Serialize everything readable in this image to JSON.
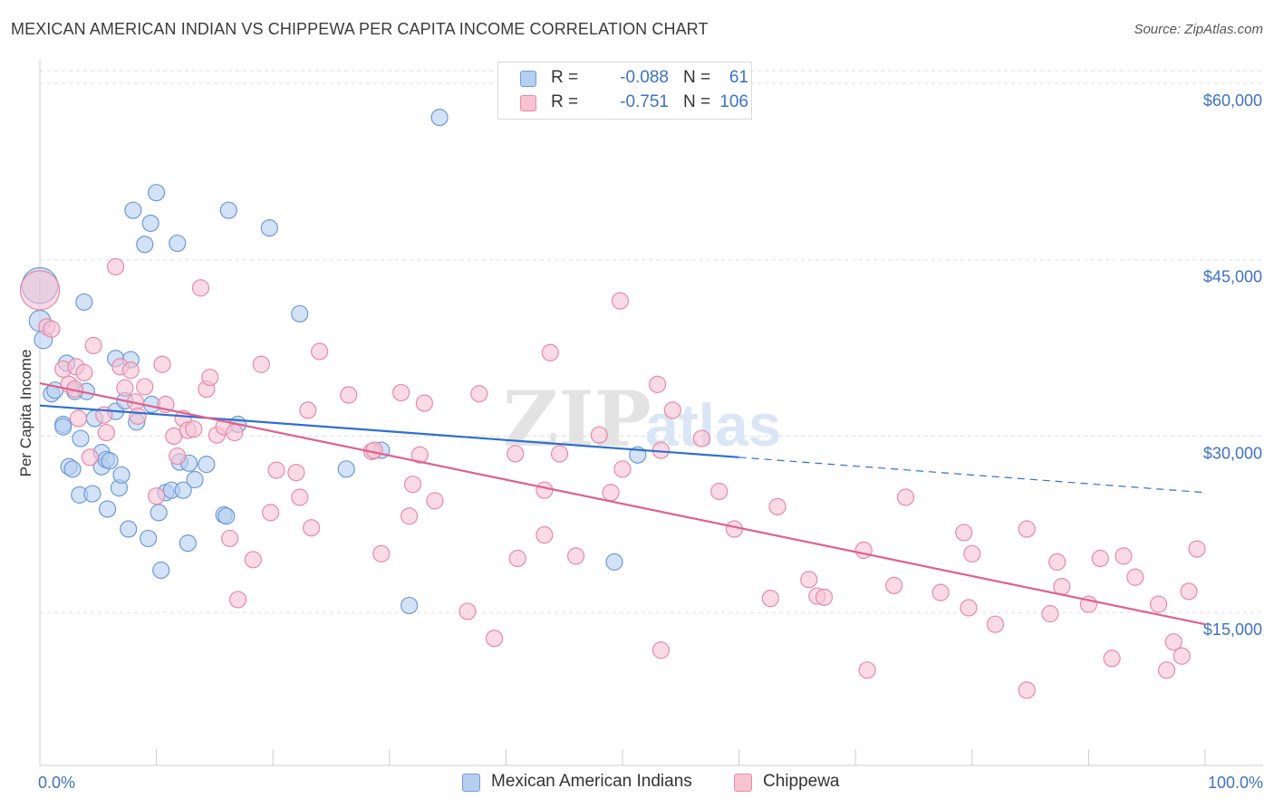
{
  "title": "MEXICAN AMERICAN INDIAN VS CHIPPEWA PER CAPITA INCOME CORRELATION CHART",
  "source": "Source: ZipAtlas.com",
  "watermark": {
    "zip": "ZIP",
    "atlas": "atlas"
  },
  "legend": {
    "r_label": "R =",
    "n_label": "N =",
    "rows": [
      {
        "r": "-0.088",
        "n": "61"
      },
      {
        "r": "-0.751",
        "n": "106"
      }
    ]
  },
  "colors": {
    "blue_fill": "#b6cff0",
    "blue_stroke": "#6d9ad8",
    "blue_line": "#2f6fce",
    "pink_fill": "#f7c3d3",
    "pink_stroke": "#e58aa8",
    "pink_line": "#e0608d",
    "tick_text": "#3d72c4",
    "grid": "#dddddd"
  },
  "chart_data": {
    "type": "scatter",
    "title": "MEXICAN AMERICAN INDIAN VS CHIPPEWA PER CAPITA INCOME CORRELATION CHART",
    "xlabel": "",
    "ylabel": "Per Capita Income",
    "xlim": [
      0,
      100
    ],
    "ylim": [
      2000,
      62000
    ],
    "x_tick_labels": [
      "0.0%",
      "100.0%"
    ],
    "y_ticks": [
      15000,
      30000,
      45000,
      60000
    ],
    "y_tick_labels": [
      "$15,000",
      "$30,000",
      "$45,000",
      "$60,000"
    ],
    "grid": true,
    "legend_position": "top-center",
    "series": [
      {
        "name": "Mexican American Indians",
        "r": -0.088,
        "n": 61,
        "trend": {
          "x0": 0,
          "y0": 32600,
          "x1": 60,
          "y1": 28200,
          "dashed_to_x": 100,
          "dashed_to_y": 25200
        },
        "points": [
          [
            0,
            42800,
            2.2
          ],
          [
            0,
            39800,
            1.3
          ],
          [
            0.3,
            38200,
            1.1
          ],
          [
            1,
            33600,
            1
          ],
          [
            1.3,
            33900,
            1
          ],
          [
            2,
            31000,
            1
          ],
          [
            2,
            30800,
            1
          ],
          [
            2.3,
            36200,
            1
          ],
          [
            2.5,
            27400,
            1
          ],
          [
            2.8,
            27200,
            1
          ],
          [
            3,
            33800,
            1
          ],
          [
            3.4,
            25000,
            1
          ],
          [
            3.5,
            29800,
            1
          ],
          [
            3.8,
            41400,
            1
          ],
          [
            4,
            33800,
            1
          ],
          [
            4.5,
            25100,
            1
          ],
          [
            4.7,
            31500,
            1
          ],
          [
            5.3,
            28600,
            1
          ],
          [
            5.3,
            27400,
            1
          ],
          [
            5.7,
            28000,
            1
          ],
          [
            5.8,
            23800,
            1
          ],
          [
            6,
            27900,
            1
          ],
          [
            6.5,
            36600,
            1
          ],
          [
            6.5,
            32100,
            1
          ],
          [
            6.8,
            25600,
            1
          ],
          [
            7,
            26700,
            1
          ],
          [
            7.3,
            33000,
            1
          ],
          [
            7.6,
            22100,
            1
          ],
          [
            7.8,
            36500,
            1
          ],
          [
            8,
            49200,
            1
          ],
          [
            8.3,
            31200,
            1
          ],
          [
            9,
            46300,
            1
          ],
          [
            9.3,
            21300,
            1
          ],
          [
            9.5,
            48100,
            1
          ],
          [
            9.6,
            32700,
            1
          ],
          [
            10,
            50700,
            1
          ],
          [
            10.2,
            23500,
            1
          ],
          [
            10.4,
            18600,
            1
          ],
          [
            10.8,
            25200,
            1
          ],
          [
            11.3,
            25400,
            1
          ],
          [
            11.8,
            46400,
            1
          ],
          [
            12,
            27800,
            1
          ],
          [
            12.3,
            25400,
            1
          ],
          [
            12.7,
            20900,
            1
          ],
          [
            12.8,
            27700,
            1
          ],
          [
            13.3,
            26300,
            1
          ],
          [
            14.3,
            27600,
            1
          ],
          [
            15.8,
            23300,
            1
          ],
          [
            16,
            23200,
            1
          ],
          [
            16.2,
            49200,
            1
          ],
          [
            17,
            31000,
            1
          ],
          [
            19.7,
            47700,
            1
          ],
          [
            22.3,
            40400,
            1
          ],
          [
            26.3,
            27200,
            1
          ],
          [
            29.3,
            28800,
            1
          ],
          [
            31.7,
            15600,
            1
          ],
          [
            34.3,
            57100,
            1
          ],
          [
            49.3,
            19300,
            1
          ],
          [
            51.3,
            28400,
            1
          ]
        ]
      },
      {
        "name": "Chippewa",
        "r": -0.751,
        "n": 106,
        "trend": {
          "x0": 0,
          "y0": 34500,
          "x1": 100,
          "y1": 14000
        },
        "points": [
          [
            0,
            42400,
            2.4
          ],
          [
            0.6,
            39300,
            1
          ],
          [
            1,
            39100,
            1
          ],
          [
            2,
            35700,
            1
          ],
          [
            2.5,
            34400,
            1
          ],
          [
            3,
            34000,
            1
          ],
          [
            3.1,
            35900,
            1
          ],
          [
            3.3,
            31500,
            1
          ],
          [
            3.8,
            35400,
            1
          ],
          [
            4.3,
            28200,
            1
          ],
          [
            4.6,
            37700,
            1
          ],
          [
            5.5,
            31800,
            1
          ],
          [
            5.7,
            30300,
            1
          ],
          [
            6.5,
            44400,
            1
          ],
          [
            6.9,
            35900,
            1
          ],
          [
            7.3,
            34100,
            1
          ],
          [
            7.8,
            35600,
            1
          ],
          [
            8.2,
            32900,
            1
          ],
          [
            8.4,
            31700,
            1
          ],
          [
            9,
            34200,
            1
          ],
          [
            10,
            24900,
            1
          ],
          [
            10.5,
            36100,
            1
          ],
          [
            10.8,
            32700,
            1
          ],
          [
            11.5,
            30000,
            1
          ],
          [
            11.8,
            28300,
            1
          ],
          [
            12.3,
            31500,
            1
          ],
          [
            12.7,
            30500,
            1
          ],
          [
            13.2,
            30600,
            1
          ],
          [
            13.8,
            42600,
            1
          ],
          [
            14.3,
            34000,
            1
          ],
          [
            14.6,
            35000,
            1
          ],
          [
            15.2,
            30100,
            1
          ],
          [
            15.8,
            30800,
            1
          ],
          [
            16.3,
            21300,
            1
          ],
          [
            16.7,
            30300,
            1
          ],
          [
            17,
            16100,
            1
          ],
          [
            18.3,
            19500,
            1
          ],
          [
            19,
            36100,
            1
          ],
          [
            19.8,
            23500,
            1
          ],
          [
            20.3,
            27100,
            1
          ],
          [
            22,
            26900,
            1
          ],
          [
            22.3,
            24800,
            1
          ],
          [
            23,
            32200,
            1
          ],
          [
            23.3,
            22200,
            1
          ],
          [
            24,
            37200,
            1
          ],
          [
            26.5,
            33500,
            1
          ],
          [
            28.5,
            28700,
            1
          ],
          [
            28.7,
            28800,
            1
          ],
          [
            29.3,
            20000,
            1
          ],
          [
            31,
            33700,
            1
          ],
          [
            31.7,
            23200,
            1
          ],
          [
            32,
            25900,
            1
          ],
          [
            32.6,
            28400,
            1
          ],
          [
            33,
            32800,
            1
          ],
          [
            33.9,
            24500,
            1
          ],
          [
            36.7,
            15100,
            1
          ],
          [
            37.7,
            33600,
            1
          ],
          [
            39,
            12800,
            1
          ],
          [
            40.8,
            28500,
            1
          ],
          [
            41,
            19600,
            1
          ],
          [
            43.3,
            25400,
            1
          ],
          [
            43.3,
            21600,
            1
          ],
          [
            43.8,
            37100,
            1
          ],
          [
            44.6,
            28500,
            1
          ],
          [
            46,
            19800,
            1
          ],
          [
            48,
            30100,
            1
          ],
          [
            49,
            25200,
            1
          ],
          [
            49.8,
            41500,
            1
          ],
          [
            50,
            27200,
            1
          ],
          [
            53,
            34400,
            1
          ],
          [
            53.3,
            11800,
            1
          ],
          [
            53.3,
            28800,
            1
          ],
          [
            54.3,
            32200,
            1
          ],
          [
            56.8,
            29800,
            1
          ],
          [
            58.3,
            25300,
            1
          ],
          [
            59.6,
            22100,
            1
          ],
          [
            62.7,
            16200,
            1
          ],
          [
            63.3,
            24000,
            1
          ],
          [
            66,
            17800,
            1
          ],
          [
            66.7,
            16400,
            1
          ],
          [
            67.3,
            16300,
            1
          ],
          [
            70.7,
            20300,
            1
          ],
          [
            71,
            10100,
            1
          ],
          [
            73.3,
            17300,
            1
          ],
          [
            74.3,
            24800,
            1
          ],
          [
            77.3,
            16700,
            1
          ],
          [
            79.3,
            21800,
            1
          ],
          [
            79.7,
            15400,
            1
          ],
          [
            80,
            20000,
            1
          ],
          [
            82,
            14000,
            1
          ],
          [
            84.7,
            22100,
            1
          ],
          [
            84.7,
            8400,
            1
          ],
          [
            86.7,
            14900,
            1
          ],
          [
            87.3,
            19300,
            1
          ],
          [
            87.7,
            17200,
            1
          ],
          [
            90,
            15700,
            1
          ],
          [
            91,
            19600,
            1
          ],
          [
            92,
            11100,
            1
          ],
          [
            93,
            19800,
            1
          ],
          [
            94,
            18000,
            1
          ],
          [
            96,
            15700,
            1
          ],
          [
            96.7,
            10100,
            1
          ],
          [
            97.3,
            12500,
            1
          ],
          [
            98,
            11300,
            1
          ],
          [
            98.6,
            16800,
            1
          ],
          [
            99.3,
            20400,
            1
          ]
        ]
      }
    ]
  }
}
